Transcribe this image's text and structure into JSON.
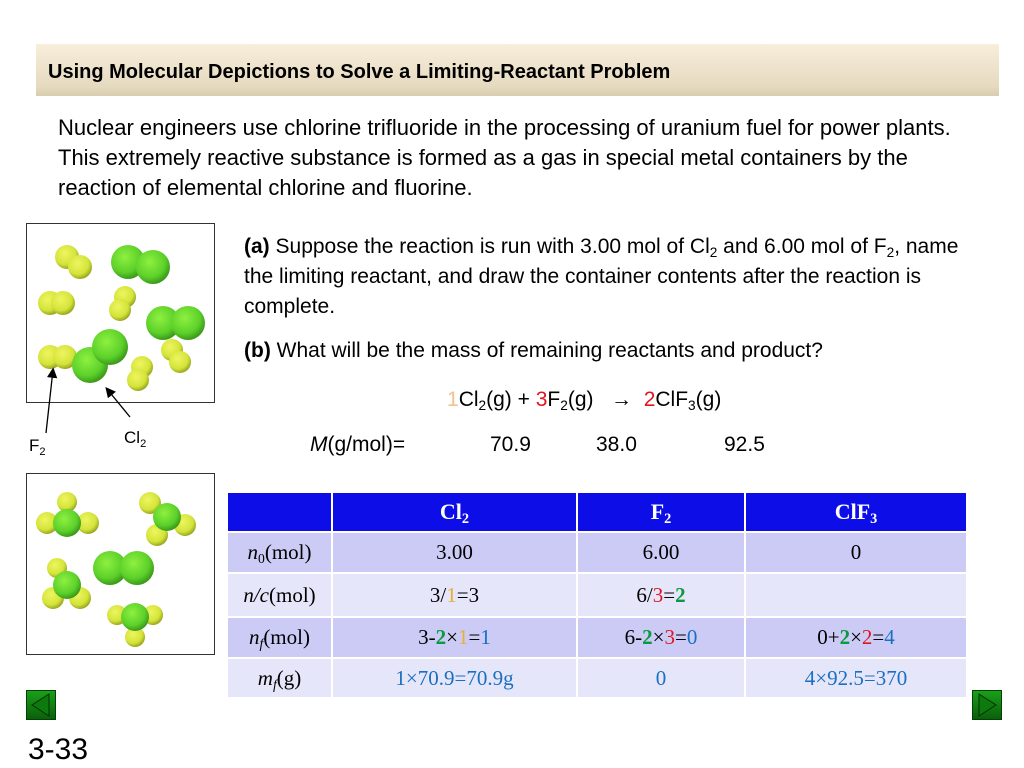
{
  "title": "Using Molecular Depictions to Solve a Limiting-Reactant Problem",
  "intro": "Nuclear engineers use chlorine trifluoride in the processing of uranium fuel for power plants.  This extremely reactive substance is formed as a gas in special metal containers by the reaction of elemental chlorine and fluorine.",
  "part_a": {
    "label": "(a)",
    "t1": "  Suppose the reaction is run with 3.00 mol of Cl",
    "s1": "2",
    "t2": " and 6.00 mol of F",
    "s2": "2",
    "t3": ", name the limiting reactant, and draw the container contents after the reaction is complete."
  },
  "part_b": {
    "label": "(b)",
    "text": " What will be the mass of remaining reactants and product?"
  },
  "equation": {
    "c1": "1",
    "r1": "Cl",
    "r1s": "2",
    "r1p": "(g) + ",
    "c2": "3",
    "r2": "F",
    "r2s": "2",
    "r2p": "(g)   →  ",
    "c3": "2",
    "p": "ClF",
    "ps": "3",
    "pp": "(g)"
  },
  "molar_mass": {
    "M": "M",
    "label": "(g/mol)=",
    "cl2": "70.9",
    "f2": "38.0",
    "clf3": "92.5"
  },
  "labels": {
    "f2": "F",
    "f2s": "2",
    "cl2": "Cl",
    "cl2s": "2"
  },
  "table": {
    "headers": [
      {
        "t": "Cl",
        "s": "2"
      },
      {
        "t": "F",
        "s": "2"
      },
      {
        "t": "ClF",
        "s": "3"
      }
    ],
    "rows": [
      {
        "v": "n",
        "s": "0",
        "u": "(mol)",
        "cells": [
          "3.00",
          "6.00",
          "0"
        ]
      },
      {
        "v": "n/c",
        "u": "(mol)",
        "c1": [
          "3/",
          "1",
          "=3"
        ],
        "c2": [
          "6/",
          "3",
          "=",
          "2"
        ]
      },
      {
        "v": "n",
        "s": "f",
        "u": "(mol)",
        "c1": [
          "3-",
          "2",
          "×",
          "1",
          "=",
          "1"
        ],
        "c2": [
          "6-",
          "2",
          "×",
          "3",
          "=",
          "0"
        ],
        "c3": [
          "0+",
          "2",
          "×",
          "2",
          "=",
          "4"
        ]
      },
      {
        "v": "m",
        "s": "f",
        "u": "(g)",
        "cells": [
          "1×70.9=70.9g",
          "0",
          "4×92.5=370"
        ]
      }
    ]
  },
  "colors": {
    "header": "#0d0de8",
    "chlorine": "#5fd42a",
    "fluorine": "#d6e83a"
  },
  "page_number": "3-33"
}
